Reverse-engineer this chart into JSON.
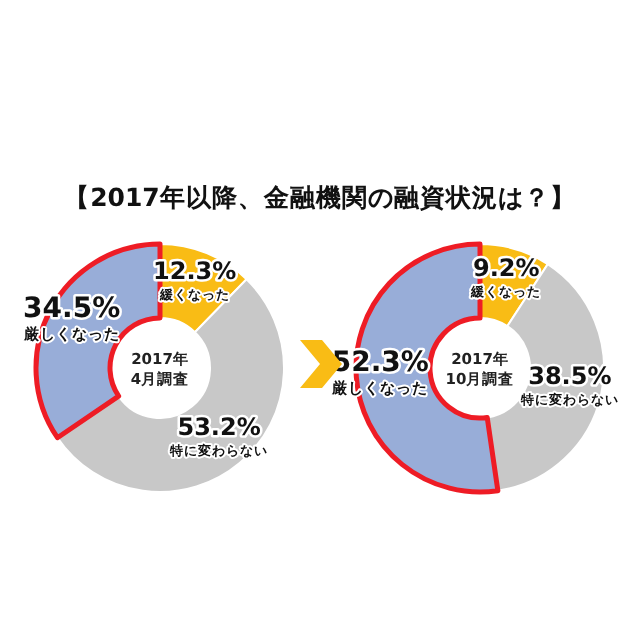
{
  "chart_data": [
    {
      "type": "donut",
      "title": "【2017年以降、金融機関の融資状況は？】",
      "categories": [
        "緩くなった",
        "特に変わらない",
        "厳しくなった"
      ],
      "values": [
        12.3,
        53.2,
        34.5
      ],
      "value_labels": [
        "12.3%",
        "53.2%",
        "34.5%"
      ],
      "colors": [
        "#f9bc15",
        "#c8c8c8",
        "#98add8"
      ],
      "annotations": [
        "2017年\n4月調査"
      ]
    },
    {
      "type": "donut",
      "categories": [
        "緩くなった",
        "特に変わらない",
        "厳しくなった"
      ],
      "values": [
        9.2,
        38.5,
        52.3
      ],
      "value_labels": [
        "9.2%",
        "38.5%",
        "52.3%"
      ],
      "colors": [
        "#f9bc15",
        "#c8c8c8",
        "#98add8"
      ],
      "annotations": [
        "2017年\n10月調査"
      ]
    }
  ]
}
